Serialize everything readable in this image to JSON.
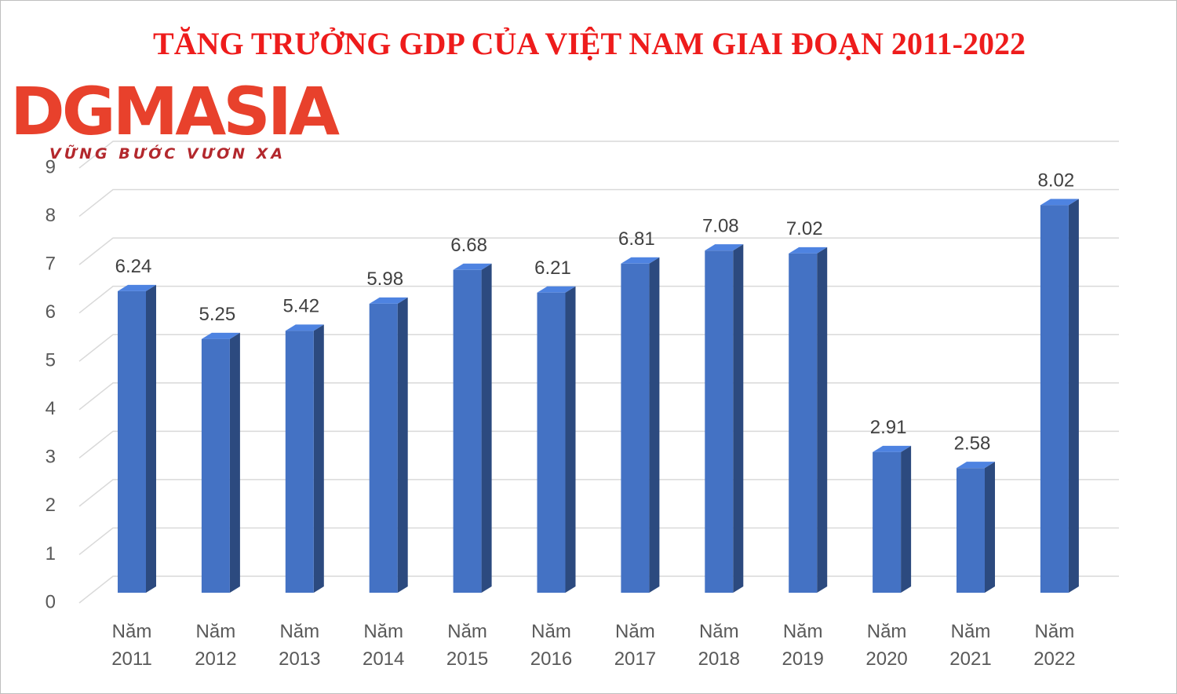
{
  "logo": {
    "name": "DGMASIA",
    "slogan": "VỮNG BƯỚC VƯƠN XA"
  },
  "chart_data": {
    "type": "bar3d",
    "title": "TĂNG TRƯỞNG GDP CỦA VIỆT NAM GIAI ĐOẠN 2011-2022",
    "categories": [
      "Năm 2011",
      "Năm 2012",
      "Năm 2013",
      "Năm 2014",
      "Năm 2015",
      "Năm 2016",
      "Năm 2017",
      "Năm 2018",
      "Năm 2019",
      "Năm 2020",
      "Năm 2021",
      "Năm 2022"
    ],
    "values": [
      6.24,
      5.25,
      5.42,
      5.98,
      6.68,
      6.21,
      6.81,
      7.08,
      7.02,
      2.91,
      2.58,
      8.02
    ],
    "color": "#4472c4",
    "ylim": [
      0,
      9
    ],
    "yticks": [
      0,
      1,
      2,
      3,
      4,
      5,
      6,
      7,
      8,
      9
    ],
    "grid": true
  }
}
